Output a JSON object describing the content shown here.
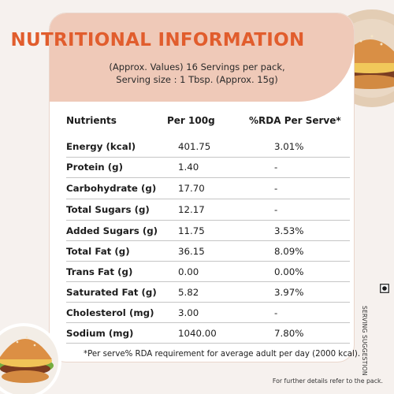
{
  "title": "NUTRITIONAL INFORMATION",
  "subtitle_line1": "(Approx. Values) 16 Servings per pack,",
  "subtitle_line2": "Serving size : 1 Tbsp. (Approx. 15g)",
  "table": {
    "headers": [
      "Nutrients",
      "Per 100g",
      "%RDA Per Serve*"
    ],
    "rows": [
      [
        "Energy (kcal)",
        "401.75",
        "3.01%"
      ],
      [
        "Protein (g)",
        "1.40",
        "-"
      ],
      [
        "Carbohydrate (g)",
        "17.70",
        "-"
      ],
      [
        "Total Sugars (g)",
        "12.17",
        "-"
      ],
      [
        "Added Sugars (g)",
        "11.75",
        "3.53%"
      ],
      [
        "Total Fat (g)",
        "36.15",
        "8.09%"
      ],
      [
        "Trans Fat (g)",
        "0.00",
        "0.00%"
      ],
      [
        "Saturated Fat (g)",
        "5.82",
        "3.97%"
      ],
      [
        "Cholesterol (mg)",
        "3.00",
        "-"
      ],
      [
        "Sodium (mg)",
        "1040.00",
        "7.80%"
      ]
    ]
  },
  "footnote": "*Per serve% RDA requirement for average adult per day (2000 kcal).",
  "further_details": "For further details refer to the pack.",
  "serving_suggestion": "SERVING SUGGESTION",
  "colors": {
    "title": "#e15d2d",
    "banner": "#efc9b8",
    "plate": "#e0c9b0"
  },
  "icons": [
    "burger-plate-image-top-right",
    "burger-plate-image-bottom-left",
    "veg-mark-icon"
  ]
}
